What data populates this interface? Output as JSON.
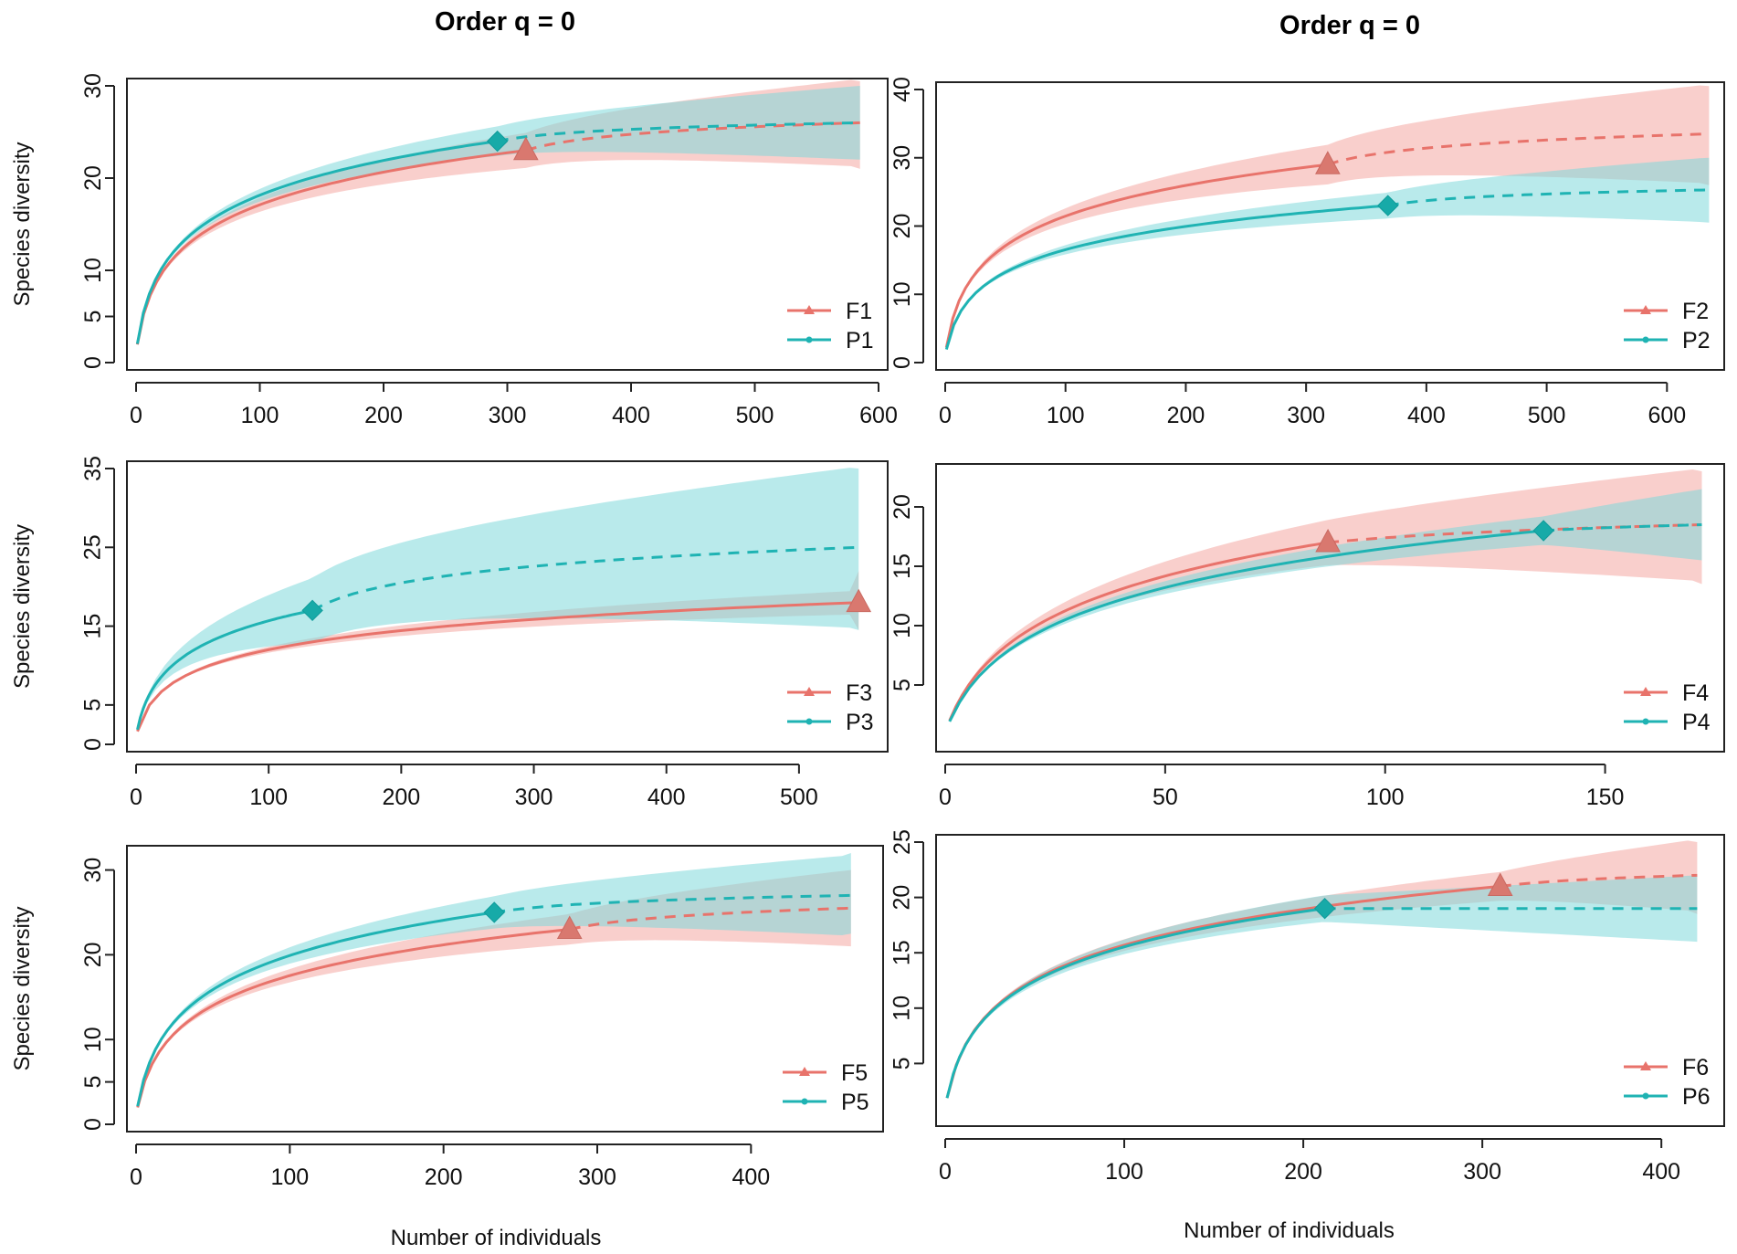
{
  "figure": {
    "column_titles": [
      "Order q = 0",
      "Order q = 0"
    ],
    "colors": {
      "F": "#e8736b",
      "P": "#1fb3b3",
      "F_band": "#f4a8a2",
      "P_band": "#7fd8da"
    }
  },
  "chart_data": [
    {
      "type": "line",
      "title": "",
      "xlabel": "",
      "ylabel": "Species diversity",
      "xlim": [
        0,
        600
      ],
      "ylim": [
        0,
        30
      ],
      "xticks": [
        0,
        100,
        200,
        300,
        400,
        500,
        600
      ],
      "yticks": [
        0,
        5,
        10,
        20,
        30
      ],
      "legend": [
        "F1",
        "P1"
      ],
      "legend_position": "bottom-right",
      "series": [
        {
          "name": "F1",
          "n_obs": 315,
          "s_obs": 23,
          "s_end": 26,
          "x_max": 585,
          "band_lo_end": 21,
          "band_hi_end": 30.5
        },
        {
          "name": "P1",
          "n_obs": 292,
          "s_obs": 24,
          "s_end": 26,
          "x_max": 585,
          "band_lo_end": 22,
          "band_hi_end": 30
        }
      ]
    },
    {
      "type": "line",
      "title": "",
      "xlabel": "",
      "ylabel": "",
      "xlim": [
        0,
        640
      ],
      "ylim": [
        0,
        40
      ],
      "xticks": [
        0,
        100,
        200,
        300,
        400,
        500,
        600
      ],
      "yticks": [
        0,
        10,
        20,
        30,
        40
      ],
      "legend": [
        "F2",
        "P2"
      ],
      "legend_position": "bottom-right",
      "series": [
        {
          "name": "F2",
          "n_obs": 318,
          "s_obs": 29,
          "s_end": 33.5,
          "x_max": 635,
          "band_lo_end": 26,
          "band_hi_end": 40.5
        },
        {
          "name": "P2",
          "n_obs": 368,
          "s_obs": 23,
          "s_end": 25.3,
          "x_max": 635,
          "band_lo_end": 20.5,
          "band_hi_end": 30
        }
      ]
    },
    {
      "type": "line",
      "title": "",
      "xlabel": "",
      "ylabel": "Species diversity",
      "xlim": [
        0,
        560
      ],
      "ylim": [
        0,
        35
      ],
      "xticks": [
        0,
        100,
        200,
        300,
        400,
        500
      ],
      "yticks": [
        0,
        5,
        15,
        25,
        35
      ],
      "legend": [
        "F3",
        "P3"
      ],
      "legend_position": "bottom-right",
      "series": [
        {
          "name": "F3",
          "n_obs": 545,
          "s_obs": 18,
          "s_end": 18,
          "x_max": 545,
          "band_lo_end": 14.5,
          "band_hi_end": 22
        },
        {
          "name": "P3",
          "n_obs": 133,
          "s_obs": 17,
          "s_end": 25,
          "x_max": 545,
          "band_lo_end": 14.5,
          "band_hi_end": 35
        }
      ]
    },
    {
      "type": "line",
      "title": "",
      "xlabel": "",
      "ylabel": "",
      "xlim": [
        0,
        175
      ],
      "ylim": [
        0,
        23
      ],
      "xticks": [
        0,
        50,
        100,
        150
      ],
      "yticks": [
        5,
        10,
        15,
        20
      ],
      "legend": [
        "F4",
        "P4"
      ],
      "legend_position": "bottom-right",
      "series": [
        {
          "name": "F4",
          "n_obs": 87,
          "s_obs": 17,
          "s_end": 18.5,
          "x_max": 172,
          "band_lo_end": 13.5,
          "band_hi_end": 23
        },
        {
          "name": "P4",
          "n_obs": 136,
          "s_obs": 18,
          "s_end": 18.5,
          "x_max": 172,
          "band_lo_end": 15.5,
          "band_hi_end": 21.5
        }
      ]
    },
    {
      "type": "line",
      "title": "",
      "xlabel": "Number of individuals",
      "ylabel": "Species diversity",
      "xlim": [
        0,
        480
      ],
      "ylim": [
        0,
        32
      ],
      "xticks": [
        0,
        100,
        200,
        300,
        400
      ],
      "yticks": [
        0,
        5,
        10,
        20,
        30
      ],
      "legend": [
        "F5",
        "P5"
      ],
      "legend_position": "bottom-right",
      "series": [
        {
          "name": "F5",
          "n_obs": 282,
          "s_obs": 23,
          "s_end": 25.5,
          "x_max": 465,
          "band_lo_end": 21,
          "band_hi_end": 30
        },
        {
          "name": "P5",
          "n_obs": 233,
          "s_obs": 25,
          "s_end": 27,
          "x_max": 465,
          "band_lo_end": 22.5,
          "band_hi_end": 32
        }
      ]
    },
    {
      "type": "line",
      "title": "",
      "xlabel": "Number of individuals",
      "ylabel": "",
      "xlim": [
        0,
        430
      ],
      "ylim": [
        0,
        25
      ],
      "xticks": [
        0,
        100,
        200,
        300,
        400
      ],
      "yticks": [
        5,
        10,
        15,
        20,
        25
      ],
      "legend": [
        "F6",
        "P6"
      ],
      "legend_position": "bottom-right",
      "series": [
        {
          "name": "F6",
          "n_obs": 310,
          "s_obs": 21,
          "s_end": 22,
          "x_max": 420,
          "band_lo_end": 18.5,
          "band_hi_end": 25
        },
        {
          "name": "P6",
          "n_obs": 212,
          "s_obs": 19,
          "s_end": 19,
          "x_max": 420,
          "band_lo_end": 16,
          "band_hi_end": 22
        }
      ]
    }
  ]
}
